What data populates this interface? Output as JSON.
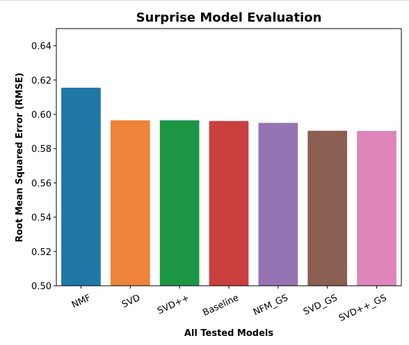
{
  "chart_data": {
    "type": "bar",
    "title": "Surprise Model Evaluation",
    "xlabel": "All Tested Models",
    "ylabel": "Root Mean Squared Error (RMSE)",
    "ylim": [
      0.5,
      0.65
    ],
    "yticks": [
      "0.50",
      "0.52",
      "0.54",
      "0.56",
      "0.58",
      "0.60",
      "0.62",
      "0.64"
    ],
    "categories": [
      "NMF",
      "SVD",
      "SVD++",
      "Baseline",
      "NFM_GS",
      "SVD_GS",
      "SVD++_GS"
    ],
    "values": [
      0.6155,
      0.5965,
      0.5965,
      0.5961,
      0.595,
      0.5904,
      0.5903
    ],
    "colors": [
      "#1f77a8",
      "#ee833a",
      "#1c9545",
      "#cc3f3f",
      "#9673b2",
      "#8b5e52",
      "#de85ba"
    ],
    "grid": false,
    "legend": "none"
  }
}
